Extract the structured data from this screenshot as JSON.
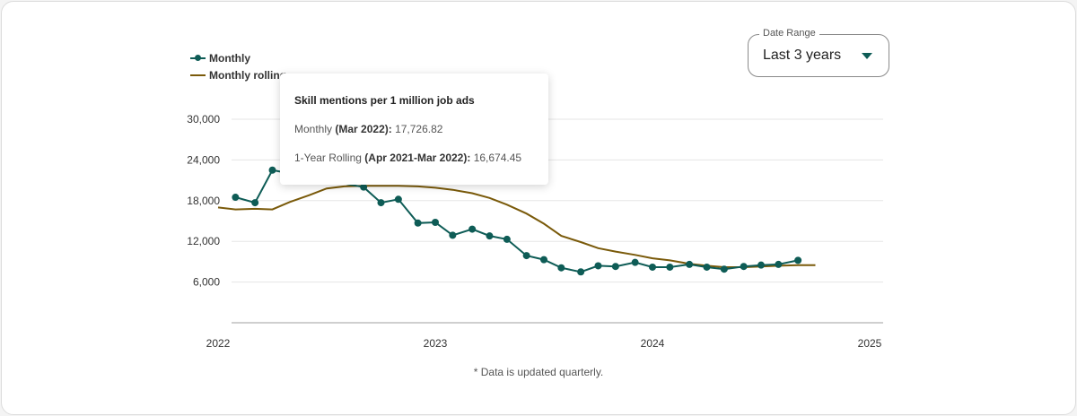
{
  "legend": {
    "monthly": "Monthly",
    "rolling": "Monthly rolling"
  },
  "date_range": {
    "label": "Date Range",
    "value": "Last 3 years"
  },
  "tooltip": {
    "title": "Skill mentions per 1 million job ads",
    "line1_prefix": "Monthly",
    "line1_period": "(Mar 2022):",
    "line1_value": "17,726.82",
    "line2_prefix": "1-Year Rolling",
    "line2_period": "(Apr 2021-Mar 2022):",
    "line2_value": "16,674.45"
  },
  "footnote": "* Data is updated quarterly.",
  "colors": {
    "monthly": "#0e5c56",
    "rolling": "#7a5a0a",
    "grid": "#e6e6e6",
    "axis": "#cfcfcf"
  },
  "chart_data": {
    "type": "line",
    "grid": true,
    "legend_position": "top-left",
    "ylim": [
      0,
      30000
    ],
    "y_ticks": [
      6000,
      12000,
      18000,
      24000,
      30000
    ],
    "y_tick_labels": [
      "6,000",
      "12,000",
      "18,000",
      "24,000",
      "30,000"
    ],
    "x_ticks": [
      2022,
      2023,
      2024,
      2025
    ],
    "x_tick_labels": [
      "2022",
      "2023",
      "2024",
      "2025"
    ],
    "xlim": [
      2022.0,
      2025.0
    ],
    "series": [
      {
        "name": "Monthly",
        "x": [
          2022.08,
          2022.17,
          2022.25,
          2022.67,
          2022.75,
          2022.83,
          2022.92,
          2023.0,
          2023.08,
          2023.17,
          2023.25,
          2023.33,
          2023.42,
          2023.5,
          2023.58,
          2023.67,
          2023.75,
          2023.83,
          2023.92,
          2024.0,
          2024.08,
          2024.17,
          2024.25,
          2024.33,
          2024.42,
          2024.5,
          2024.58,
          2024.67
        ],
        "values": [
          18500,
          17700,
          22500,
          20000,
          17700,
          18200,
          14700,
          14800,
          12900,
          13800,
          12800,
          12300,
          9900,
          9300,
          8100,
          7500,
          8400,
          8300,
          8900,
          8200,
          8200,
          8600,
          8200,
          7900,
          8300,
          8500,
          8600,
          9200
        ]
      },
      {
        "name": "Monthly rolling",
        "x": [
          2022.0,
          2022.08,
          2022.17,
          2022.25,
          2022.33,
          2022.42,
          2022.5,
          2022.58,
          2022.67,
          2022.75,
          2022.83,
          2022.92,
          2023.0,
          2023.08,
          2023.17,
          2023.25,
          2023.33,
          2023.42,
          2023.5,
          2023.58,
          2023.67,
          2023.75,
          2023.83,
          2023.92,
          2024.0,
          2024.08,
          2024.17,
          2024.25,
          2024.33,
          2024.42,
          2024.5,
          2024.58,
          2024.67,
          2024.75
        ],
        "values": [
          17000,
          16700,
          16800,
          16700,
          17800,
          18800,
          19800,
          20100,
          20200,
          20200,
          20200,
          20100,
          19900,
          19600,
          19100,
          18400,
          17400,
          16100,
          14600,
          12800,
          11900,
          11000,
          10500,
          10000,
          9500,
          9200,
          8700,
          8400,
          8200,
          8200,
          8300,
          8400,
          8500,
          8500
        ]
      }
    ]
  }
}
